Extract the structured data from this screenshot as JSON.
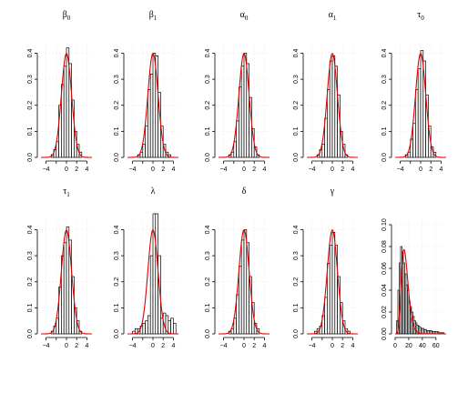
{
  "chart_data": [
    {
      "type": "bar",
      "title": "β",
      "subscript": "0",
      "xlim": [
        -5,
        5
      ],
      "ylim": [
        0,
        0.44
      ],
      "xticks": [
        -4,
        -2,
        0,
        2,
        4
      ],
      "xtick_labels": [
        "−4",
        "",
        "0",
        "2",
        "4"
      ],
      "yticks": [
        0,
        0.1,
        0.2,
        0.3,
        0.4
      ],
      "ytick_labels": [
        "0.0",
        "0.1",
        "0.2",
        "0.3",
        "0.4"
      ],
      "bin_edges": [
        -3,
        -2.5,
        -2,
        -1.5,
        -1,
        -0.5,
        0,
        0.5,
        1,
        1.5,
        2,
        2.5,
        3
      ],
      "values": [
        0.01,
        0.03,
        0.06,
        0.2,
        0.28,
        0.35,
        0.42,
        0.36,
        0.22,
        0.1,
        0.05,
        0.02
      ],
      "density_curve": "normal(0,1)"
    },
    {
      "type": "bar",
      "title": "β",
      "subscript": "1",
      "xlim": [
        -5,
        5
      ],
      "ylim": [
        0,
        0.44
      ],
      "xticks": [
        -4,
        -2,
        0,
        2,
        4
      ],
      "xtick_labels": [
        "−4",
        "",
        "0",
        "2",
        "4"
      ],
      "yticks": [
        0,
        0.1,
        0.2,
        0.3,
        0.4
      ],
      "ytick_labels": [
        "0.0",
        "0.1",
        "0.2",
        "0.3",
        "0.4"
      ],
      "bin_edges": [
        -3,
        -2.5,
        -2,
        -1.5,
        -1,
        -0.5,
        0,
        0.5,
        1,
        1.5,
        2,
        2.5,
        3,
        3.5
      ],
      "values": [
        0.01,
        0.02,
        0.05,
        0.12,
        0.26,
        0.32,
        0.4,
        0.39,
        0.25,
        0.12,
        0.05,
        0.02,
        0.01
      ],
      "density_curve": "normal(0,1)"
    },
    {
      "type": "bar",
      "title": "α",
      "subscript": "0",
      "xlim": [
        -5,
        5
      ],
      "ylim": [
        0,
        0.44
      ],
      "xticks": [
        -4,
        -2,
        0,
        2,
        4
      ],
      "xtick_labels": [
        "−4",
        "",
        "0",
        "2",
        "4"
      ],
      "yticks": [
        0,
        0.1,
        0.2,
        0.3,
        0.4
      ],
      "ytick_labels": [
        "0.0",
        "0.1",
        "0.2",
        "0.3",
        "0.4"
      ],
      "bin_edges": [
        -3,
        -2.5,
        -2,
        -1.5,
        -1,
        -0.5,
        0,
        0.5,
        1,
        1.5,
        2,
        2.5,
        3
      ],
      "values": [
        0.01,
        0.02,
        0.06,
        0.14,
        0.27,
        0.35,
        0.4,
        0.36,
        0.23,
        0.11,
        0.04,
        0.01
      ],
      "density_curve": "normal(0,1)"
    },
    {
      "type": "bar",
      "title": "α",
      "subscript": "1",
      "xlim": [
        -5,
        5
      ],
      "ylim": [
        0,
        0.44
      ],
      "xticks": [
        -4,
        -2,
        0,
        2,
        4
      ],
      "xtick_labels": [
        "−4",
        "",
        "0",
        "2",
        "4"
      ],
      "yticks": [
        0,
        0.1,
        0.2,
        0.3,
        0.4
      ],
      "ytick_labels": [
        "0.0",
        "0.1",
        "0.2",
        "0.3",
        "0.4"
      ],
      "bin_edges": [
        -3,
        -2.5,
        -2,
        -1.5,
        -1,
        -0.5,
        0,
        0.5,
        1,
        1.5,
        2,
        2.5,
        3
      ],
      "values": [
        0.01,
        0.03,
        0.05,
        0.15,
        0.26,
        0.37,
        0.39,
        0.35,
        0.24,
        0.1,
        0.05,
        0.01
      ],
      "density_curve": "normal(0,1)"
    },
    {
      "type": "bar",
      "title": "τ",
      "subscript": "0",
      "xlim": [
        -5,
        5
      ],
      "ylim": [
        0,
        0.44
      ],
      "xticks": [
        -4,
        -2,
        0,
        2,
        4
      ],
      "xtick_labels": [
        "−4",
        "",
        "0",
        "2",
        "4"
      ],
      "yticks": [
        0,
        0.1,
        0.2,
        0.3,
        0.4
      ],
      "ytick_labels": [
        "0.0",
        "0.1",
        "0.2",
        "0.3",
        "0.4"
      ],
      "bin_edges": [
        -3,
        -2.5,
        -2,
        -1.5,
        -1,
        -0.5,
        0,
        0.5,
        1,
        1.5,
        2,
        2.5,
        3
      ],
      "values": [
        0.01,
        0.02,
        0.07,
        0.13,
        0.26,
        0.34,
        0.41,
        0.37,
        0.24,
        0.12,
        0.04,
        0.02
      ],
      "density_curve": "normal(0,1)"
    },
    {
      "type": "bar",
      "title": "τ",
      "subscript": "1",
      "xlim": [
        -5,
        5
      ],
      "ylim": [
        0,
        0.44
      ],
      "xticks": [
        -4,
        -2,
        0,
        2,
        4
      ],
      "xtick_labels": [
        "−4",
        "",
        "0",
        "2",
        "4"
      ],
      "yticks": [
        0,
        0.1,
        0.2,
        0.3,
        0.4
      ],
      "ytick_labels": [
        "0.0",
        "0.1",
        "0.2",
        "0.3",
        "0.4"
      ],
      "bin_edges": [
        -3,
        -2.5,
        -2,
        -1.5,
        -1,
        -0.5,
        0,
        0.5,
        1,
        1.5,
        2,
        2.5,
        3
      ],
      "values": [
        0.01,
        0.03,
        0.06,
        0.18,
        0.3,
        0.35,
        0.41,
        0.36,
        0.22,
        0.1,
        0.05,
        0.01
      ],
      "density_curve": "normal(0,1)"
    },
    {
      "type": "bar",
      "title": "λ",
      "subscript": "",
      "xlim": [
        -5,
        5
      ],
      "ylim": [
        0,
        0.44
      ],
      "xticks": [
        -4,
        -2,
        0,
        2,
        4
      ],
      "xtick_labels": [
        "−4",
        "",
        "0",
        "2",
        "4"
      ],
      "yticks": [
        0,
        0.1,
        0.2,
        0.3,
        0.4
      ],
      "ytick_labels": [
        "0.0",
        "0.1",
        "0.2",
        "0.3",
        "0.4"
      ],
      "bin_edges": [
        -4,
        -3.5,
        -3,
        -2.5,
        -2,
        -1.5,
        -1,
        -0.5,
        0,
        0.5,
        1,
        1.5,
        2,
        2.5,
        3,
        3.5,
        4,
        4.5
      ],
      "values": [
        0.01,
        0.02,
        0.02,
        0.03,
        0.04,
        0.05,
        0.07,
        0.3,
        0.5,
        0.5,
        0.3,
        0.06,
        0.08,
        0.07,
        0.05,
        0.06,
        0.04
      ],
      "density_curve": "normal(0,1)"
    },
    {
      "type": "bar",
      "title": "δ",
      "subscript": "",
      "xlim": [
        -5,
        5
      ],
      "ylim": [
        0,
        0.44
      ],
      "xticks": [
        -4,
        -2,
        0,
        2,
        4
      ],
      "xtick_labels": [
        "−4",
        "",
        "0",
        "2",
        "4"
      ],
      "yticks": [
        0,
        0.1,
        0.2,
        0.3,
        0.4
      ],
      "ytick_labels": [
        "0.0",
        "0.1",
        "0.2",
        "0.3",
        "0.4"
      ],
      "bin_edges": [
        -3,
        -2.5,
        -2,
        -1.5,
        -1,
        -0.5,
        0,
        0.5,
        1,
        1.5,
        2,
        2.5,
        3
      ],
      "values": [
        0.01,
        0.02,
        0.06,
        0.15,
        0.26,
        0.36,
        0.4,
        0.35,
        0.22,
        0.12,
        0.04,
        0.02
      ],
      "density_curve": "normal(0,1)"
    },
    {
      "type": "bar",
      "title": "γ",
      "subscript": "",
      "xlim": [
        -5,
        5
      ],
      "ylim": [
        0,
        0.44
      ],
      "xticks": [
        -4,
        -2,
        0,
        2,
        4
      ],
      "xtick_labels": [
        "−4",
        "",
        "0",
        "2",
        "4"
      ],
      "yticks": [
        0,
        0.1,
        0.2,
        0.3,
        0.4
      ],
      "ytick_labels": [
        "0.0",
        "0.1",
        "0.2",
        "0.3",
        "0.4"
      ],
      "bin_edges": [
        -3.5,
        -3,
        -2.5,
        -2,
        -1.5,
        -1,
        -0.5,
        0,
        0.5,
        1,
        1.5,
        2,
        2.5,
        3,
        3.5
      ],
      "values": [
        0.01,
        0.02,
        0.03,
        0.07,
        0.14,
        0.27,
        0.34,
        0.39,
        0.34,
        0.22,
        0.12,
        0.05,
        0.02,
        0.01
      ],
      "density_curve": "normal(0,1)"
    },
    {
      "type": "bar",
      "title": "",
      "subscript": "",
      "xlim": [
        0,
        75
      ],
      "ylim": [
        0,
        0.105
      ],
      "xticks": [
        0,
        20,
        40,
        60
      ],
      "xtick_labels": [
        "0",
        "20",
        "40",
        "60"
      ],
      "yticks": [
        0,
        0.02,
        0.04,
        0.06,
        0.08,
        0.1
      ],
      "ytick_labels": [
        "0.00",
        "0.02",
        "0.04",
        "0.06",
        "0.08",
        "0.10"
      ],
      "bin_edges": [
        2,
        4,
        6,
        8,
        10,
        12,
        14,
        16,
        18,
        20,
        22,
        24,
        26,
        28,
        30,
        32,
        34,
        36,
        38,
        40,
        42,
        44,
        46,
        48,
        50,
        52,
        54,
        56,
        58,
        60,
        62,
        64,
        66,
        68,
        70,
        72
      ],
      "values": [
        0.012,
        0.04,
        0.065,
        0.08,
        0.075,
        0.065,
        0.055,
        0.045,
        0.04,
        0.03,
        0.025,
        0.02,
        0.016,
        0.012,
        0.01,
        0.008,
        0.007,
        0.006,
        0.005,
        0.005,
        0.004,
        0.004,
        0.003,
        0.003,
        0.003,
        0.003,
        0.002,
        0.002,
        0.002,
        0.002,
        0.002,
        0.001,
        0.001,
        0.001,
        0.001
      ],
      "density_curve": "chi-square(15)"
    }
  ]
}
